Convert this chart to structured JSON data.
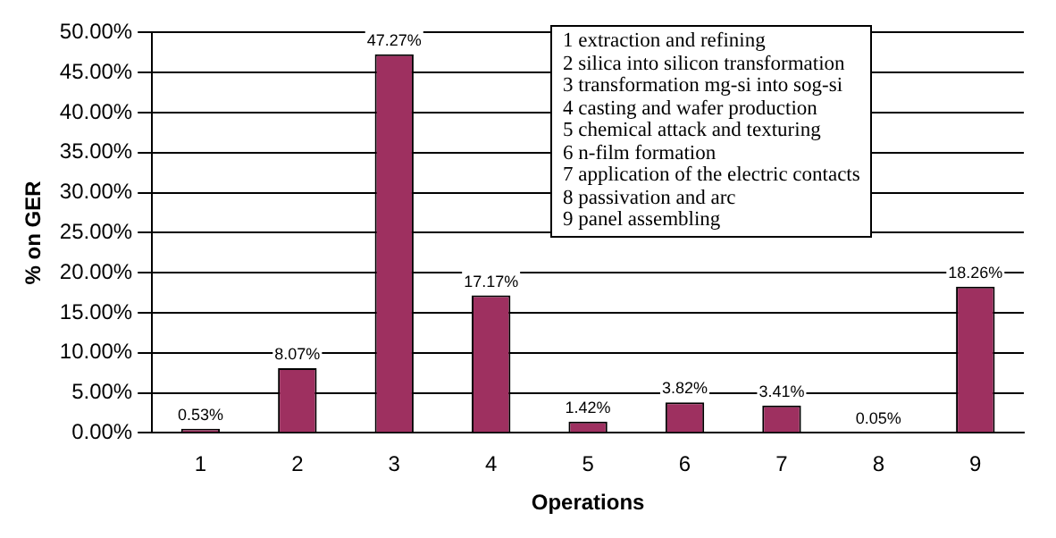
{
  "chart_data": {
    "type": "bar",
    "xlabel": "Operations",
    "ylabel": "% on GER",
    "categories": [
      "1",
      "2",
      "3",
      "4",
      "5",
      "6",
      "7",
      "8",
      "9"
    ],
    "values": [
      0.53,
      8.07,
      47.27,
      17.17,
      1.42,
      3.82,
      3.41,
      0.05,
      18.26
    ],
    "value_labels": [
      "0.53%",
      "8.07%",
      "47.27%",
      "17.17%",
      "1.42%",
      "3.82%",
      "3.41%",
      "0.05%",
      "18.26%"
    ],
    "color": "#9e3060",
    "ylim": [
      0,
      50
    ],
    "yticks": [
      {
        "value": 0,
        "label": "0.00%"
      },
      {
        "value": 5,
        "label": "5.00%"
      },
      {
        "value": 10,
        "label": "10.00%"
      },
      {
        "value": 15,
        "label": "15.00%"
      },
      {
        "value": 20,
        "label": "20.00%"
      },
      {
        "value": 25,
        "label": "25.00%"
      },
      {
        "value": 30,
        "label": "30.00%"
      },
      {
        "value": 35,
        "label": "35.00%"
      },
      {
        "value": 40,
        "label": "40.00%"
      },
      {
        "value": 45,
        "label": "45.00%"
      },
      {
        "value": 50,
        "label": "50.00%"
      }
    ],
    "grid": "y",
    "annotations": [
      "1 extraction and refining",
      "2 silica into silicon transformation",
      "3 transformation mg-si into sog-si",
      "4 casting and wafer production",
      "5 chemical attack and texturing",
      "6 n-film formation",
      "7 application of the electric contacts",
      "8 passivation and arc",
      "9 panel assembling"
    ]
  }
}
